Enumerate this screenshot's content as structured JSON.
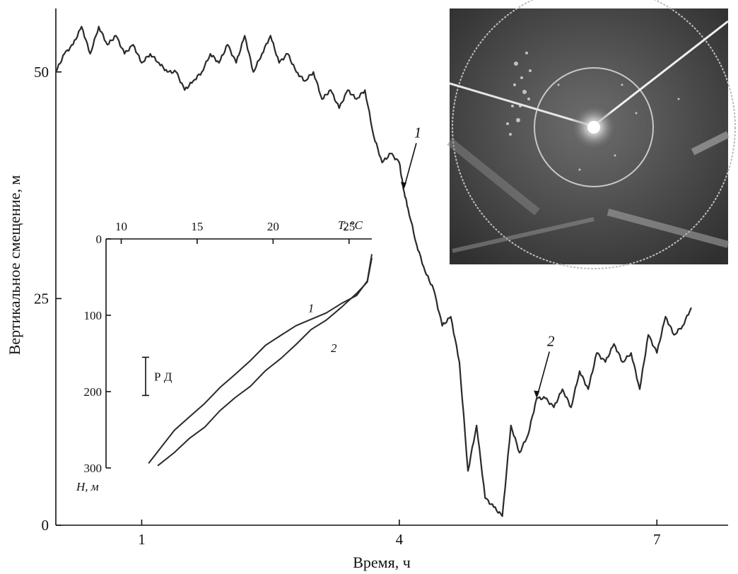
{
  "chart_data": [
    {
      "type": "line",
      "xlabel": "Время, ч",
      "ylabel": "Вертикальное смещение, м",
      "xlim": [
        0.0,
        7.5
      ],
      "ylim": [
        0,
        57
      ],
      "x_ticks": [
        1,
        4,
        7
      ],
      "y_ticks": [
        0,
        25,
        50
      ],
      "series": [
        {
          "x": [
            0.0,
            0.1,
            0.2,
            0.3,
            0.4,
            0.5,
            0.6,
            0.7,
            0.8,
            0.9,
            1.0,
            1.1,
            1.2,
            1.3,
            1.4,
            1.5,
            1.6,
            1.7,
            1.8,
            1.9,
            2.0,
            2.1,
            2.2,
            2.3,
            2.4,
            2.5,
            2.6,
            2.7,
            2.8,
            2.9,
            3.0,
            3.1,
            3.2,
            3.3,
            3.4,
            3.5,
            3.6,
            3.7,
            3.8,
            3.9,
            4.0,
            4.05,
            4.1,
            4.2,
            4.3,
            4.4,
            4.5,
            4.6,
            4.7,
            4.8,
            4.9,
            5.0,
            5.1,
            5.2,
            5.3,
            5.4,
            5.5,
            5.6,
            5.7,
            5.8,
            5.9,
            6.0,
            6.1,
            6.2,
            6.3,
            6.4,
            6.5,
            6.6,
            6.7,
            6.8,
            6.9,
            7.0,
            7.1,
            7.2,
            7.3,
            7.4
          ],
          "values": [
            50,
            52,
            53,
            55,
            52,
            55,
            53,
            54,
            52,
            53,
            51,
            52,
            51,
            50,
            50,
            48,
            49,
            50,
            52,
            51,
            53,
            51,
            54,
            50,
            52,
            54,
            51,
            52,
            50,
            49,
            50,
            47,
            48,
            46,
            48,
            47,
            48,
            43,
            40,
            41,
            40,
            37,
            35,
            31,
            28,
            26,
            22,
            23,
            18,
            6,
            11,
            3,
            2,
            1,
            11,
            8,
            10,
            14,
            14,
            13,
            15,
            13,
            17,
            15,
            19,
            18,
            20,
            18,
            19,
            15,
            21,
            19,
            23,
            21,
            22,
            24
          ]
        }
      ],
      "annotations": [
        "1",
        "2"
      ],
      "annotation_points": [
        [
          4.05,
          37
        ],
        [
          5.6,
          14
        ]
      ]
    },
    {
      "type": "line",
      "xlabel": "T, °C",
      "ylabel": "H, м",
      "xlim": [
        9,
        26.5
      ],
      "ylim": [
        300,
        0
      ],
      "x_ticks": [
        10,
        15,
        20,
        25
      ],
      "y_ticks": [
        0,
        100,
        200,
        300
      ],
      "scale_bar_label": "Р Д",
      "scale_bar_range": [
        155,
        205
      ],
      "series": [
        {
          "name": "1",
          "x": [
            11.8,
            12.5,
            13.5,
            14.5,
            15.5,
            16.5,
            17.5,
            18.5,
            19.5,
            20.5,
            21.5,
            22.5,
            23.5,
            24.5,
            25.5,
            26.2,
            26.5
          ],
          "values": [
            294,
            275,
            252,
            232,
            215,
            196,
            176,
            160,
            140,
            125,
            115,
            105,
            96,
            86,
            73,
            55,
            20
          ]
        },
        {
          "name": "2",
          "x": [
            12.4,
            13.5,
            14.5,
            15.5,
            16.5,
            17.5,
            18.5,
            19.5,
            20.5,
            21.5,
            22.5,
            23.5,
            24.5,
            25.5,
            26.2,
            26.5
          ],
          "values": [
            297,
            280,
            262,
            245,
            226,
            208,
            192,
            174,
            156,
            138,
            120,
            105,
            90,
            72,
            55,
            25
          ]
        }
      ]
    }
  ],
  "inset_photo": {
    "icon": "sonar-scope-photo"
  }
}
